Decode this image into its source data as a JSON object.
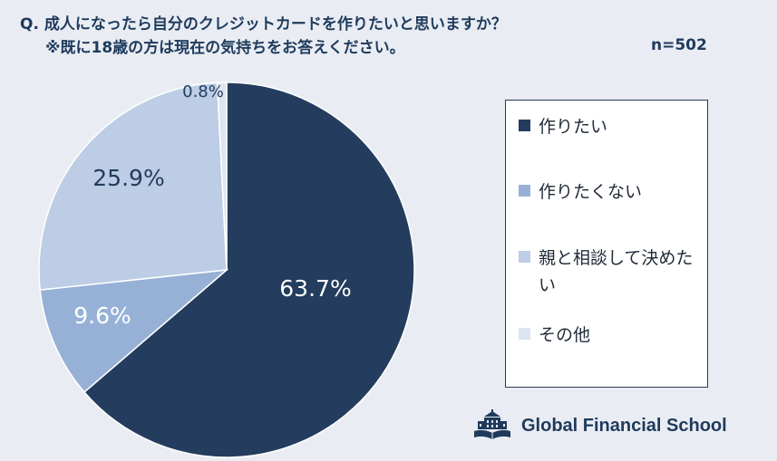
{
  "question": {
    "title": "Q. 成人になったら自分のクレジットカードを作りたいと思いますか？",
    "note": "※既に18歳の方は現在の気持ちをお答えください。",
    "sample_size": "n=502"
  },
  "chart_data": {
    "type": "pie",
    "start_angle_deg": 0,
    "direction": "clockwise",
    "slices": [
      {
        "label": "作りたい",
        "value": 63.7,
        "value_label": "63.7%",
        "color": "#243d5e"
      },
      {
        "label": "作りたくない",
        "value": 9.6,
        "value_label": "9.6%",
        "color": "#97b1d6"
      },
      {
        "label": "親と相談して決めたい",
        "value": 25.9,
        "value_label": "25.9%",
        "color": "#bccde5"
      },
      {
        "label": "その他",
        "value": 0.8,
        "value_label": "0.8%",
        "color": "#dce5f1"
      }
    ],
    "legend_position": "right"
  },
  "brand": {
    "name": "Global Financial School",
    "logo_icon": "building-book-icon",
    "color": "#1f3a5c"
  }
}
